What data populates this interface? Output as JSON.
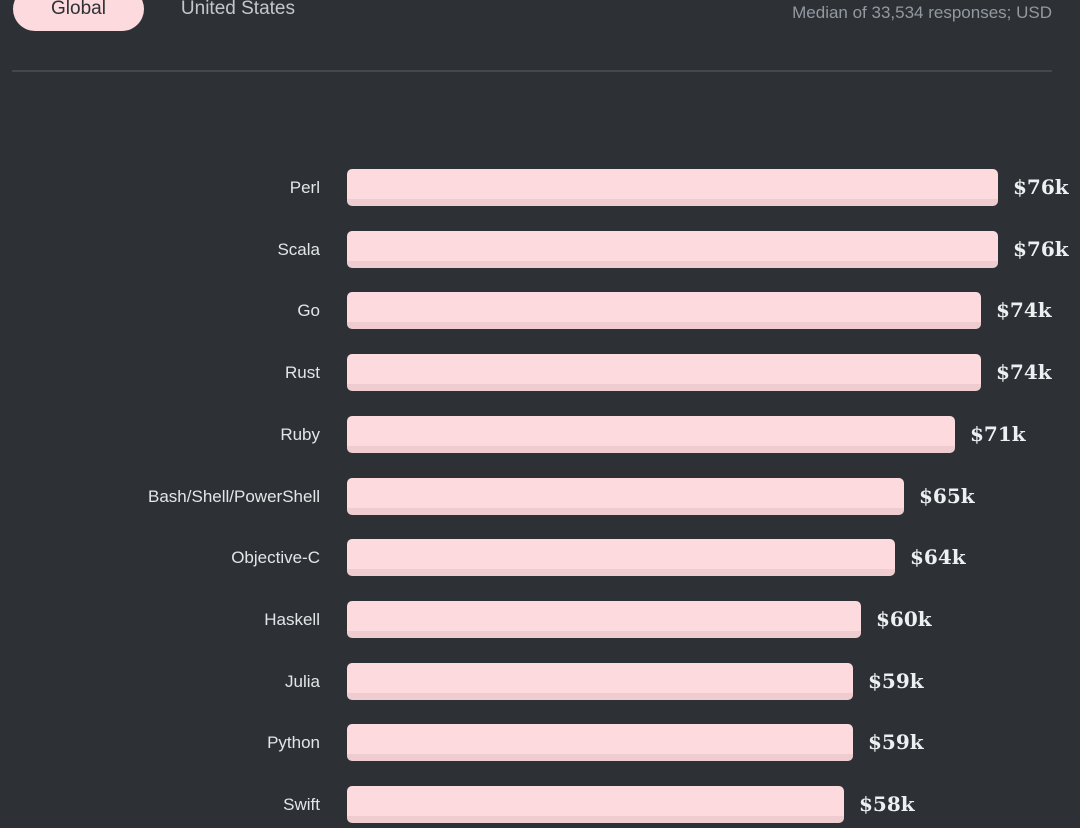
{
  "header": {
    "tabs": [
      {
        "label": "Global",
        "active": true
      },
      {
        "label": "United States",
        "active": false
      }
    ],
    "note": "Median of 33,534 responses; USD"
  },
  "chart_data": {
    "type": "bar",
    "orientation": "horizontal",
    "title": "",
    "xlabel": "",
    "ylabel": "",
    "categories": [
      "Perl",
      "Scala",
      "Go",
      "Rust",
      "Ruby",
      "Bash/Shell/PowerShell",
      "Objective-C",
      "Haskell",
      "Julia",
      "Python",
      "Swift"
    ],
    "values": [
      76,
      76,
      74,
      74,
      71,
      65,
      64,
      60,
      59,
      59,
      58
    ],
    "value_labels": [
      "$76k",
      "$76k",
      "$74k",
      "$74k",
      "$71k",
      "$65k",
      "$64k",
      "$60k",
      "$59k",
      "$59k",
      "$58k"
    ],
    "unit": "USD thousands per year",
    "xlim": [
      0,
      76
    ],
    "grid": false,
    "legend": false
  },
  "colors": {
    "background": "#2d3136",
    "bar_fill": "#fcdadd",
    "bar_bottom_edge": "#efccd0",
    "active_tab_fill": "#fcdadd",
    "active_tab_text": "#2d3136",
    "inactive_tab_text": "#c3c7cb",
    "category_text": "#e3e5e7",
    "value_text": "#edeff1",
    "note_text": "#9299a1",
    "divider": "#44484e"
  }
}
